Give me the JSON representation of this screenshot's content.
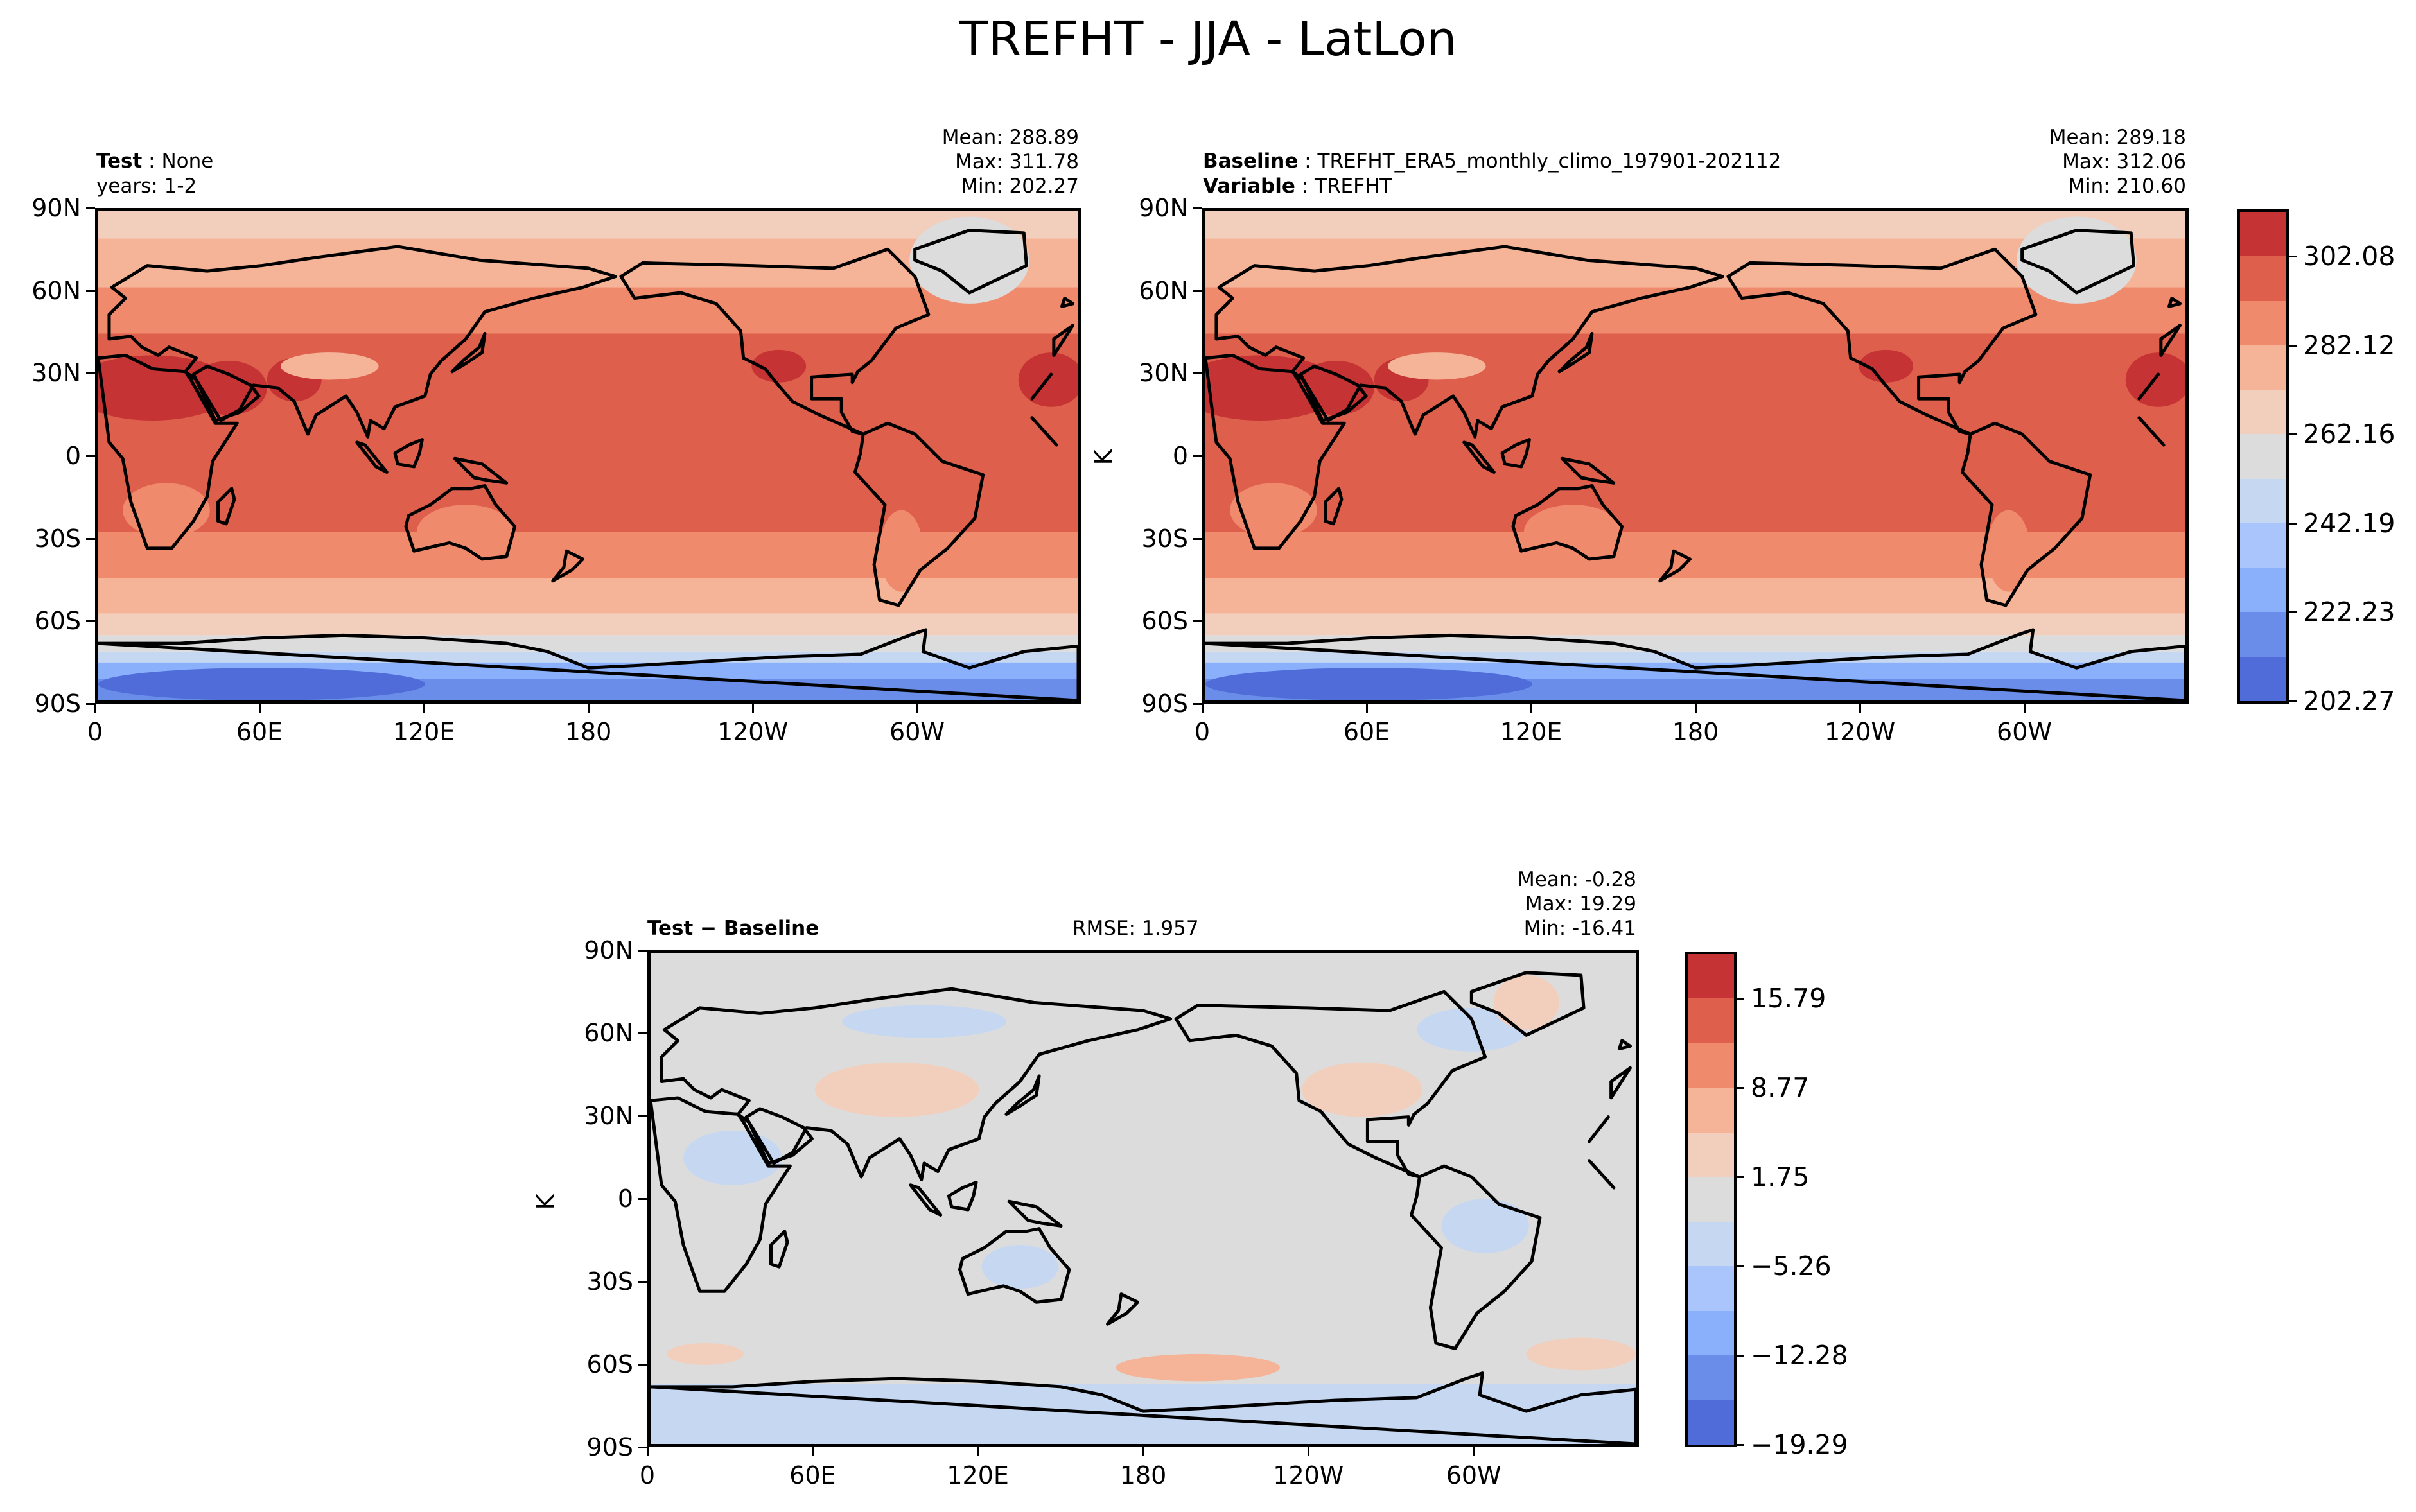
{
  "title": "TREFHT - JJA - LatLon",
  "panel_test": {
    "label_bold": "Test",
    "label_value": "None",
    "years": "years: 1-2",
    "mean": "Mean: 288.89",
    "max": "Max: 311.78",
    "min": "Min: 202.27"
  },
  "panel_baseline": {
    "label_bold": "Baseline",
    "label_value": "TREFHT_ERA5_monthly_climo_197901-202112",
    "variable_bold": "Variable",
    "variable_value": "TREFHT",
    "mean": "Mean: 289.18",
    "max": "Max: 312.06",
    "min": "Min: 210.60",
    "units": "K"
  },
  "panel_diff": {
    "label": "Test − Baseline",
    "rmse": "RMSE: 1.957",
    "mean": "Mean: -0.28",
    "max": "Max: 19.29",
    "min": "Min: -16.41",
    "units": "K"
  },
  "lat_ticks": [
    "90N",
    "60N",
    "30N",
    "0",
    "30S",
    "60S",
    "90S"
  ],
  "lon_ticks": [
    "0",
    "60E",
    "120E",
    "180",
    "120W",
    "60W"
  ],
  "colorbar_main": {
    "ticks": [
      "302.08",
      "282.12",
      "262.16",
      "242.19",
      "222.23",
      "202.27"
    ],
    "colors": [
      "#c53334",
      "#de604c",
      "#f08a6c",
      "#f5b497",
      "#f2cfbd",
      "#dcdcdc",
      "#c6d7f1",
      "#a9c5fb",
      "#8aaffb",
      "#6a8de9",
      "#4f6cd8"
    ]
  },
  "colorbar_diff": {
    "ticks": [
      "15.79",
      "8.77",
      "1.75",
      "−5.26",
      "−12.28",
      "−19.29"
    ],
    "colors": [
      "#c53334",
      "#de604c",
      "#f08a6c",
      "#f5b497",
      "#f2cfbd",
      "#dcdcdc",
      "#c6d7f1",
      "#a9c5fb",
      "#8aaffb",
      "#6a8de9",
      "#4f6cd8"
    ]
  },
  "chart_data": [
    {
      "type": "heatmap",
      "title": "",
      "panel": "Test",
      "xticks": [
        "0",
        "60E",
        "120E",
        "180",
        "120W",
        "60W"
      ],
      "yticks": [
        "90N",
        "60N",
        "30N",
        "0",
        "30S",
        "60S",
        "90S"
      ],
      "stats": {
        "mean": 288.89,
        "max": 311.78,
        "min": 202.27
      },
      "clim": [
        202.27,
        312.06
      ]
    },
    {
      "type": "heatmap",
      "title": "",
      "panel": "Baseline",
      "xticks": [
        "0",
        "60E",
        "120E",
        "180",
        "120W",
        "60W"
      ],
      "yticks": [
        "90N",
        "60N",
        "30N",
        "0",
        "30S",
        "60S",
        "90S"
      ],
      "stats": {
        "mean": 289.18,
        "max": 312.06,
        "min": 210.6
      },
      "clim": [
        202.27,
        312.06
      ],
      "colorbar_ticks": [
        302.08,
        282.12,
        262.16,
        242.19,
        222.23,
        202.27
      ]
    },
    {
      "type": "heatmap",
      "title": "",
      "panel": "Test - Baseline",
      "xticks": [
        "0",
        "60E",
        "120E",
        "180",
        "120W",
        "60W"
      ],
      "yticks": [
        "90N",
        "60N",
        "30N",
        "0",
        "30S",
        "60S",
        "90S"
      ],
      "stats": {
        "mean": -0.28,
        "max": 19.29,
        "min": -16.41,
        "rmse": 1.957
      },
      "clim": [
        -19.29,
        19.29
      ],
      "colorbar_ticks": [
        15.79,
        8.77,
        1.75,
        -5.26,
        -12.28,
        -19.29
      ]
    }
  ]
}
